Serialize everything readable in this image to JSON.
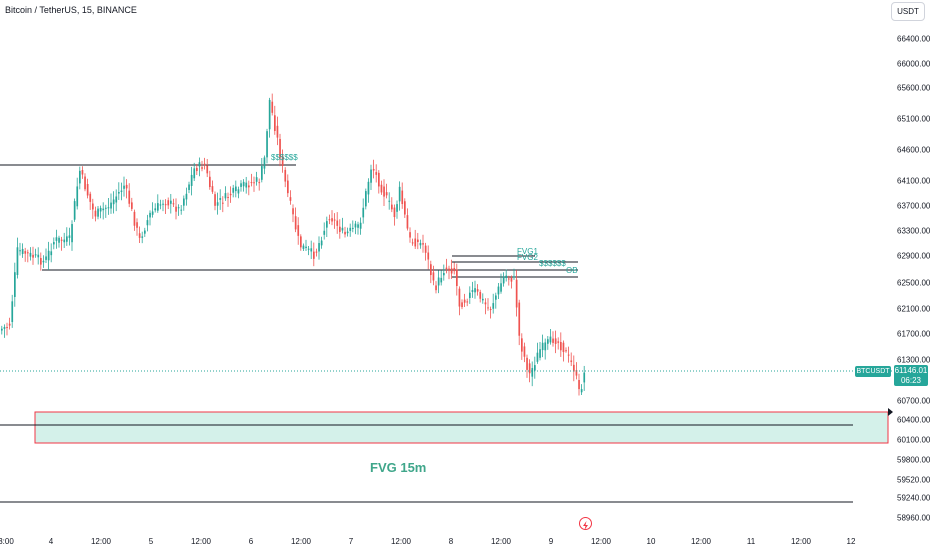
{
  "header": {
    "title": "Bitcoin / TetherUS, 15, BINANCE",
    "currency_button": "USDT"
  },
  "price_axis": {
    "ticks": [
      "66400.00",
      "66000.00",
      "65600.00",
      "65100.00",
      "64600.00",
      "64100.00",
      "63700.00",
      "63300.00",
      "62900.00",
      "62500.00",
      "62100.00",
      "61700.00",
      "61300.00",
      "60700.00",
      "60400.00",
      "60100.00",
      "59800.00",
      "59520.00",
      "59240.00",
      "58960.00"
    ]
  },
  "time_axis": {
    "ticks": [
      "3:00",
      "4",
      "12:00",
      "5",
      "12:00",
      "6",
      "12:00",
      "7",
      "12:00",
      "8",
      "12:00",
      "9",
      "12:00",
      "10",
      "12:00",
      "11",
      "12:00",
      "12"
    ]
  },
  "last_price": {
    "symbol": "BTCUSDT",
    "price": "61146.01",
    "countdown": "06:23"
  },
  "annotations": {
    "zone_label": "FVG 15m",
    "labels": [
      "$$$$$$",
      "FVG1",
      "FVG2",
      "$$$$$$",
      "OB"
    ]
  },
  "colors": {
    "up": "#26a69a",
    "down": "#ef5350",
    "zone_fill": "#d4f1ea",
    "zone_border": "#f23645",
    "lines": "#131722",
    "accent": "#26a69a"
  },
  "icons": {
    "flash": "lightning-icon"
  }
}
